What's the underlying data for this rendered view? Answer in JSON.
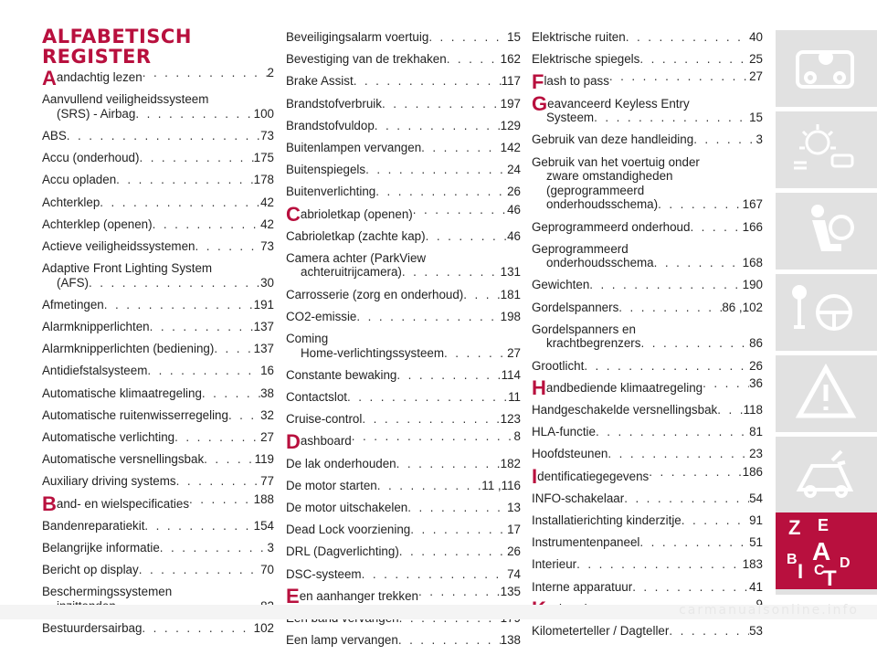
{
  "title_line1": "ALFABETISCH",
  "title_line2": "REGISTER",
  "columns": [
    [
      {
        "letter": "A",
        "lines": [
          "andachtig lezen"
        ],
        "page": "2"
      },
      {
        "lines": [
          "Aanvullend veiligheidssysteem",
          "(SRS) - Airbag"
        ],
        "page": "100"
      },
      {
        "lines": [
          "ABS"
        ],
        "page": "73"
      },
      {
        "lines": [
          "Accu (onderhoud)"
        ],
        "page": "175"
      },
      {
        "lines": [
          "Accu opladen"
        ],
        "page": "178"
      },
      {
        "lines": [
          "Achterklep"
        ],
        "page": "42"
      },
      {
        "lines": [
          "Achterklep (openen)"
        ],
        "page": "42"
      },
      {
        "lines": [
          "Actieve veiligheidssystemen"
        ],
        "page": "73"
      },
      {
        "lines": [
          "Adaptive Front Lighting System",
          "(AFS)"
        ],
        "page": "30"
      },
      {
        "lines": [
          "Afmetingen"
        ],
        "page": "191"
      },
      {
        "lines": [
          "Alarmknipperlichten"
        ],
        "page": "137"
      },
      {
        "lines": [
          "Alarmknipperlichten (bediening)"
        ],
        "page": "137"
      },
      {
        "lines": [
          "Antidiefstalsysteem"
        ],
        "page": "16"
      },
      {
        "lines": [
          "Automatische klimaatregeling"
        ],
        "page": "38"
      },
      {
        "lines": [
          "Automatische ruitenwisserregeling"
        ],
        "page": "32"
      },
      {
        "lines": [
          "Automatische verlichting"
        ],
        "page": "27"
      },
      {
        "lines": [
          "Automatische versnellingsbak"
        ],
        "page": "119"
      },
      {
        "lines": [
          "Auxiliary driving systems"
        ],
        "page": "77"
      },
      {
        "letter": "B",
        "lines": [
          "and- en wielspecificaties"
        ],
        "page": "188"
      },
      {
        "lines": [
          "Bandenreparatiekit"
        ],
        "page": "154"
      },
      {
        "lines": [
          "Belangrijke informatie"
        ],
        "page": "3"
      },
      {
        "lines": [
          "Bericht op display"
        ],
        "page": "70"
      },
      {
        "lines": [
          "Beschermingssystemen",
          "inzittenden"
        ],
        "page": "82"
      },
      {
        "lines": [
          "Bestuurdersairbag"
        ],
        "page": "102"
      }
    ],
    [
      {
        "lines": [
          "Beveiligingsalarm voertuig"
        ],
        "page": "15"
      },
      {
        "lines": [
          "Bevestiging van de trekhaken"
        ],
        "page": "162"
      },
      {
        "lines": [
          "Brake Assist"
        ],
        "page": "117"
      },
      {
        "lines": [
          "Brandstofverbruik"
        ],
        "page": "197"
      },
      {
        "lines": [
          "Brandstofvuldop"
        ],
        "page": "129"
      },
      {
        "lines": [
          "Buitenlampen vervangen"
        ],
        "page": "142"
      },
      {
        "lines": [
          "Buitenspiegels"
        ],
        "page": "24"
      },
      {
        "lines": [
          "Buitenverlichting"
        ],
        "page": "26"
      },
      {
        "letter": "C",
        "lines": [
          "abrioletkap (openen)"
        ],
        "page": "46"
      },
      {
        "lines": [
          "Cabrioletkap (zachte kap)"
        ],
        "page": "46"
      },
      {
        "lines": [
          "Camera achter (ParkView",
          "achteruitrijcamera)"
        ],
        "page": "131"
      },
      {
        "lines": [
          "Carrosserie (zorg en onderhoud)"
        ],
        "page": "181"
      },
      {
        "lines": [
          "CO2-emissie"
        ],
        "page": "198"
      },
      {
        "lines": [
          "Coming",
          "Home-verlichtingssysteem"
        ],
        "page": "27"
      },
      {
        "lines": [
          "Constante bewaking"
        ],
        "page": "114"
      },
      {
        "lines": [
          "Contactslot"
        ],
        "page": "11"
      },
      {
        "lines": [
          "Cruise-control"
        ],
        "page": "123"
      },
      {
        "letter": "D",
        "lines": [
          "ashboard"
        ],
        "page": "8"
      },
      {
        "lines": [
          "De lak onderhouden"
        ],
        "page": "182"
      },
      {
        "lines": [
          "De motor starten"
        ],
        "page": "11 ,116"
      },
      {
        "lines": [
          "De motor uitschakelen"
        ],
        "page": "13"
      },
      {
        "lines": [
          "Dead Lock voorziening"
        ],
        "page": "17"
      },
      {
        "lines": [
          "DRL (Dagverlichting)"
        ],
        "page": "26"
      },
      {
        "lines": [
          "DSC-systeem"
        ],
        "page": "74"
      },
      {
        "letter": "E",
        "lines": [
          "en aanhanger trekken"
        ],
        "page": "135"
      },
      {
        "lines": [
          "Een band vervangen"
        ],
        "page": "179"
      },
      {
        "lines": [
          "Een lamp vervangen"
        ],
        "page": "138"
      }
    ],
    [
      {
        "lines": [
          "Elektrische ruiten"
        ],
        "page": "40"
      },
      {
        "lines": [
          "Elektrische spiegels"
        ],
        "page": "25"
      },
      {
        "letter": "F",
        "lines": [
          "lash to pass"
        ],
        "page": "27"
      },
      {
        "letter": "G",
        "lines": [
          "eavanceerd Keyless Entry",
          "Systeem"
        ],
        "page": "15"
      },
      {
        "lines": [
          "Gebruik van deze handleiding"
        ],
        "page": "3"
      },
      {
        "lines": [
          "Gebruik van het voertuig onder",
          "zware omstandigheden",
          "(geprogrammeerd",
          "onderhoudsschema)"
        ],
        "page": "167"
      },
      {
        "lines": [
          "Geprogrammeerd onderhoud"
        ],
        "page": "166"
      },
      {
        "lines": [
          "Geprogrammeerd",
          "onderhoudsschema"
        ],
        "page": "168"
      },
      {
        "lines": [
          "Gewichten"
        ],
        "page": "190"
      },
      {
        "lines": [
          "Gordelspanners"
        ],
        "page": "86 ,102"
      },
      {
        "lines": [
          "Gordelspanners en",
          "krachtbegrenzers"
        ],
        "page": "86"
      },
      {
        "lines": [
          "Grootlicht"
        ],
        "page": "26"
      },
      {
        "letter": "H",
        "lines": [
          "andbediende klimaatregeling"
        ],
        "page": "36"
      },
      {
        "lines": [
          "Handgeschakelde versnellingsbak"
        ],
        "page": "118"
      },
      {
        "lines": [
          "HLA-functie"
        ],
        "page": "81"
      },
      {
        "lines": [
          "Hoofdsteunen"
        ],
        "page": "23"
      },
      {
        "letter": "I",
        "lines": [
          "dentificatiegegevens"
        ],
        "page": "186"
      },
      {
        "lines": [
          "INFO-schakelaar"
        ],
        "page": "54"
      },
      {
        "lines": [
          "Installatierichting kinderzitje"
        ],
        "page": "91"
      },
      {
        "lines": [
          "Instrumentenpaneel"
        ],
        "page": "51"
      },
      {
        "lines": [
          "Interieur"
        ],
        "page": "183"
      },
      {
        "lines": [
          "Interne apparatuur"
        ],
        "page": "41"
      },
      {
        "letter": "K",
        "lines": [
          "eyless invoersysteem"
        ],
        "page": "9"
      },
      {
        "lines": [
          "Kilometerteller / Dagteller"
        ],
        "page": "53"
      }
    ]
  ],
  "tabs": [
    {
      "icon": "car-info-icon",
      "active": false
    },
    {
      "icon": "dashboard-lights-icon",
      "active": false
    },
    {
      "icon": "airbag-seat-icon",
      "active": false
    },
    {
      "icon": "steering-key-icon",
      "active": false
    },
    {
      "icon": "warning-triangle-icon",
      "active": false
    },
    {
      "icon": "car-wrench-icon",
      "active": false
    },
    {
      "icon": "technical-data-icon",
      "active": false
    },
    {
      "icon": "index-letters-icon",
      "active": true,
      "letters": [
        "Z",
        "E",
        "B",
        "A",
        "I",
        "C",
        "T",
        "D"
      ]
    }
  ],
  "colors": {
    "accent": "#b8103e",
    "tab": "#e1e1e1",
    "text": "#222222"
  },
  "watermark": "carmanualsonline.info"
}
